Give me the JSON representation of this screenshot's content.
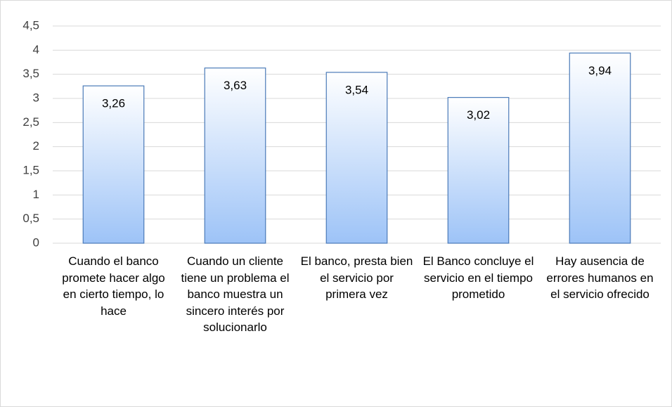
{
  "chart_data": {
    "type": "bar",
    "categories": [
      "Cuando el banco promete hacer algo en cierto tiempo, lo hace",
      "Cuando un cliente tiene un problema el banco muestra un sincero interés por solucionarlo",
      "El banco, presta bien el servicio por primera vez",
      "El Banco concluye el servicio en el tiempo prometido",
      "Hay ausencia de errores humanos en el servicio ofrecido"
    ],
    "values": [
      3.26,
      3.63,
      3.54,
      3.02,
      3.94
    ],
    "value_labels": [
      "3,26",
      "3,63",
      "3,54",
      "3,02",
      "3,94"
    ],
    "color": "#9dc3f7",
    "ylim": [
      0,
      4.5
    ],
    "yticks": [
      0,
      {
        "value": 0.5,
        "label": "0,5"
      },
      1,
      {
        "value": 1.5,
        "label": "1,5"
      },
      2,
      {
        "value": 2.5,
        "label": "2,5"
      },
      3,
      {
        "value": 3.5,
        "label": "3,5"
      },
      4,
      {
        "value": 4.5,
        "label": "4,5"
      }
    ],
    "grid": true
  }
}
